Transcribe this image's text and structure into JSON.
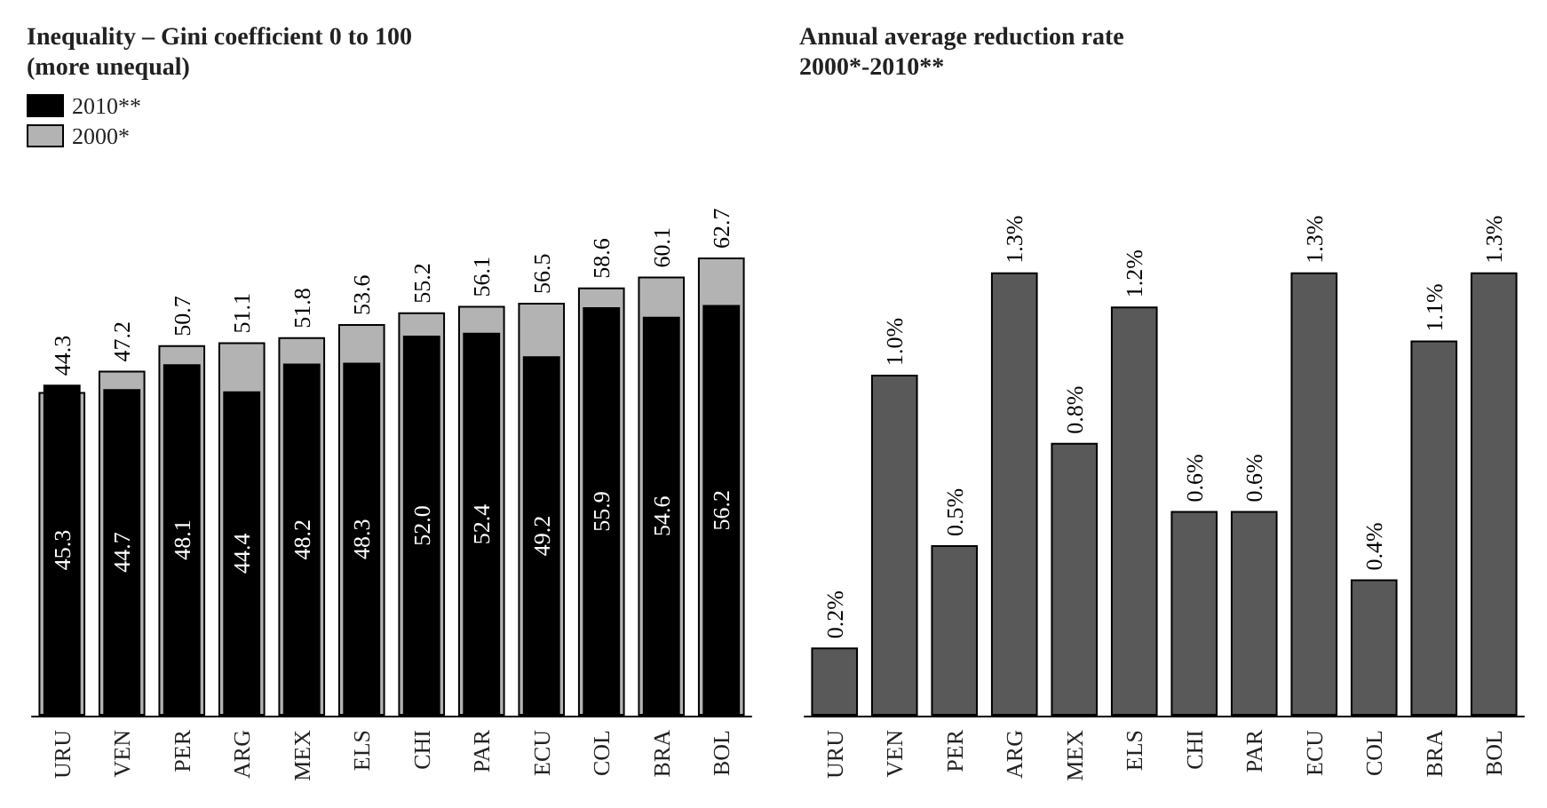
{
  "chart_data": [
    {
      "type": "bar",
      "title": "Inequality – Gini coefficient 0 to 100\n(more unequal)",
      "categories": [
        "URU",
        "VEN",
        "PER",
        "ARG",
        "MEX",
        "ELS",
        "CHI",
        "PAR",
        "ECU",
        "COL",
        "BRA",
        "BOL"
      ],
      "series": [
        {
          "name": "2010**",
          "color": "#000000",
          "values": [
            45.3,
            44.7,
            48.1,
            44.4,
            48.2,
            48.3,
            52.0,
            52.4,
            49.2,
            55.9,
            54.6,
            56.2
          ],
          "value_labels": [
            "45.3",
            "44.7",
            "48.1",
            "44.4",
            "48.2",
            "48.3",
            "52.0",
            "52.4",
            "49.2",
            "55.9",
            "54.6",
            "56.2"
          ]
        },
        {
          "name": "2000*",
          "color": "#b3b3b3",
          "values": [
            44.3,
            47.2,
            50.7,
            51.1,
            51.8,
            53.6,
            55.2,
            56.1,
            56.5,
            58.6,
            60.1,
            62.7
          ],
          "value_labels": [
            "44.3",
            "47.2",
            "50.7",
            "51.1",
            "51.8",
            "53.6",
            "55.2",
            "56.1",
            "56.5",
            "58.6",
            "60.1",
            "62.7"
          ]
        }
      ],
      "legend": "top left",
      "tick_labels": "x",
      "grid": false
    },
    {
      "type": "bar",
      "title": "Annual average reduction rate\n2000*-2010**",
      "categories": [
        "URU",
        "VEN",
        "PER",
        "ARG",
        "MEX",
        "ELS",
        "CHI",
        "PAR",
        "ECU",
        "COL",
        "BRA",
        "BOL"
      ],
      "series": [
        {
          "color": "#595959",
          "values": [
            0.2,
            1.0,
            0.5,
            1.3,
            0.8,
            1.2,
            0.6,
            0.6,
            1.3,
            0.4,
            1.1,
            1.3
          ],
          "value_labels": [
            "0.2%",
            "1.0%",
            "0.5%",
            "1.3%",
            "0.8%",
            "1.2%",
            "0.6%",
            "0.6%",
            "1.3%",
            "0.4%",
            "1.1%",
            "1.3%"
          ]
        }
      ],
      "tick_labels": "x",
      "grid": false
    }
  ]
}
